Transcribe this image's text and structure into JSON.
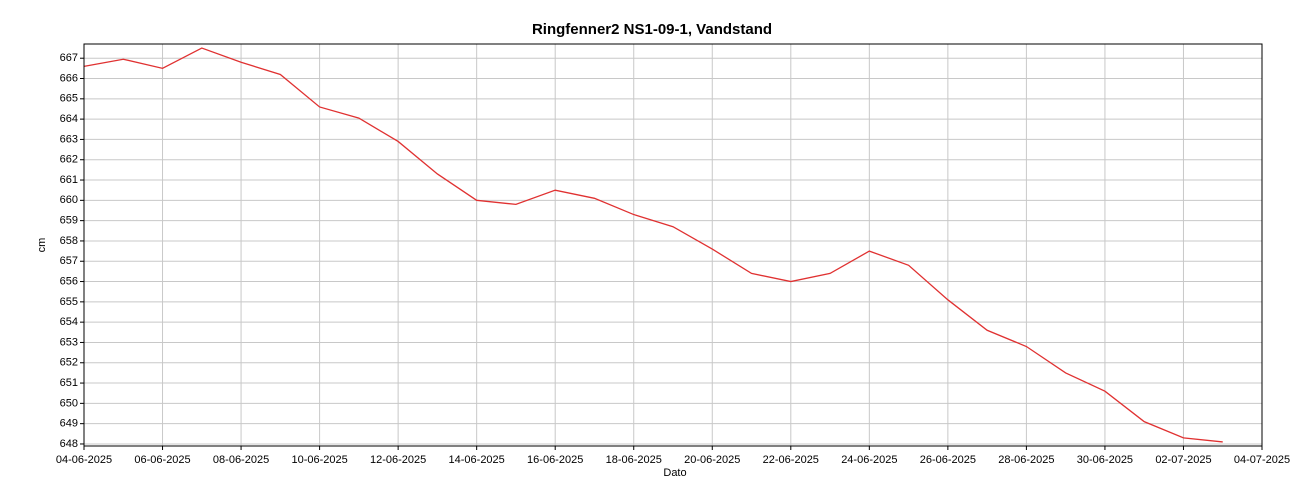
{
  "chart_data": {
    "type": "line",
    "title": "Ringfenner2 NS1-09-1, Vandstand",
    "x_label": "Dato",
    "y_label": "cm",
    "x": [
      "04-06-2025",
      "05-06-2025",
      "06-06-2025",
      "07-06-2025",
      "08-06-2025",
      "09-06-2025",
      "10-06-2025",
      "11-06-2025",
      "12-06-2025",
      "13-06-2025",
      "14-06-2025",
      "15-06-2025",
      "16-06-2025",
      "17-06-2025",
      "18-06-2025",
      "19-06-2025",
      "20-06-2025",
      "21-06-2025",
      "22-06-2025",
      "23-06-2025",
      "24-06-2025",
      "25-06-2025",
      "26-06-2025",
      "27-06-2025",
      "28-06-2025",
      "29-06-2025",
      "30-06-2025",
      "01-07-2025",
      "02-07-2025",
      "03-07-2025"
    ],
    "series": [
      {
        "name": "Vandstand",
        "color": "#e03131",
        "values": [
          666.6,
          666.95,
          666.5,
          667.5,
          666.8,
          666.2,
          664.6,
          664.05,
          662.9,
          661.3,
          660.0,
          659.8,
          660.5,
          660.1,
          659.3,
          658.7,
          657.6,
          656.4,
          656.0,
          656.4,
          657.5,
          656.8,
          655.1,
          653.6,
          652.8,
          651.5,
          650.6,
          649.1,
          648.3,
          648.1
        ]
      }
    ],
    "xlim": [
      "04-06-2025",
      "04-07-2025"
    ],
    "xticks": [
      "04-06-2025",
      "06-06-2025",
      "08-06-2025",
      "10-06-2025",
      "12-06-2025",
      "14-06-2025",
      "16-06-2025",
      "18-06-2025",
      "20-06-2025",
      "22-06-2025",
      "24-06-2025",
      "26-06-2025",
      "28-06-2025",
      "30-06-2025",
      "02-07-2025",
      "04-07-2025"
    ],
    "ylim": [
      647.9,
      667.7
    ],
    "yticks": [
      648,
      649,
      650,
      651,
      652,
      653,
      654,
      655,
      656,
      657,
      658,
      659,
      660,
      661,
      662,
      663,
      664,
      665,
      666,
      667
    ],
    "grid": true
  }
}
